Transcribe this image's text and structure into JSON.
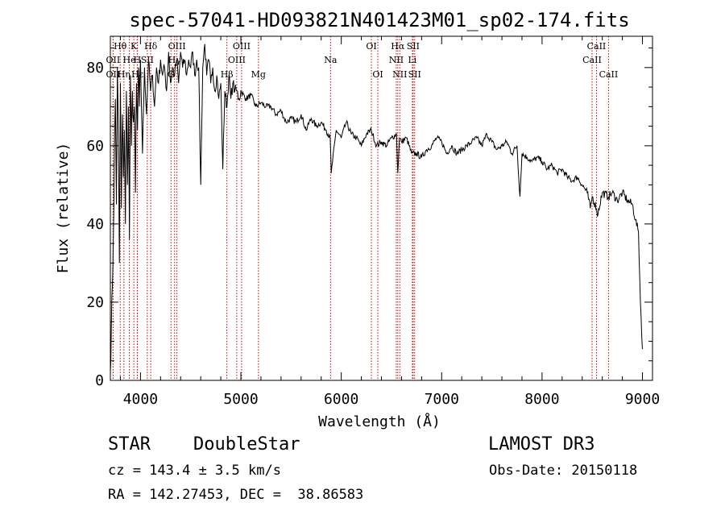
{
  "chart_data": {
    "type": "line",
    "title": "spec-57041-HD093821N401423M01_sp02-174.fits",
    "xlabel": "Wavelength (Å)",
    "ylabel": "Flux (relative)",
    "xlim": [
      3700,
      9100
    ],
    "ylim": [
      0,
      88
    ],
    "x_ticks": [
      4000,
      5000,
      6000,
      7000,
      8000,
      9000
    ],
    "x_tick_labels": [
      "4000",
      "5000",
      "6000",
      "7000",
      "8000",
      "9000"
    ],
    "y_ticks": [
      0,
      20,
      40,
      60,
      80
    ],
    "y_tick_labels": [
      "0",
      "20",
      "40",
      "60",
      "80"
    ],
    "grid": false,
    "series": [
      {
        "name": "flux",
        "color": "#000000",
        "x": [
          3700,
          3710,
          3720,
          3730,
          3740,
          3750,
          3760,
          3770,
          3780,
          3790,
          3800,
          3810,
          3820,
          3830,
          3840,
          3850,
          3860,
          3870,
          3880,
          3890,
          3900,
          3910,
          3920,
          3930,
          3940,
          3950,
          3960,
          3970,
          3980,
          3990,
          4000,
          4020,
          4040,
          4060,
          4080,
          4100,
          4120,
          4140,
          4160,
          4180,
          4200,
          4220,
          4240,
          4260,
          4280,
          4300,
          4320,
          4340,
          4360,
          4380,
          4400,
          4420,
          4440,
          4460,
          4480,
          4500,
          4520,
          4540,
          4560,
          4580,
          4600,
          4620,
          4640,
          4660,
          4680,
          4700,
          4720,
          4740,
          4760,
          4780,
          4800,
          4820,
          4840,
          4861,
          4880,
          4900,
          4920,
          4940,
          4960,
          4980,
          5000,
          5050,
          5100,
          5150,
          5200,
          5250,
          5300,
          5350,
          5400,
          5450,
          5500,
          5550,
          5600,
          5650,
          5700,
          5750,
          5800,
          5850,
          5890,
          5900,
          5950,
          6000,
          6050,
          6100,
          6150,
          6200,
          6250,
          6300,
          6350,
          6400,
          6450,
          6500,
          6550,
          6563,
          6580,
          6600,
          6650,
          6700,
          6750,
          6800,
          6850,
          6900,
          6950,
          7000,
          7050,
          7100,
          7150,
          7200,
          7250,
          7300,
          7350,
          7400,
          7450,
          7500,
          7550,
          7600,
          7650,
          7700,
          7750,
          7780,
          7800,
          7850,
          7900,
          7950,
          8000,
          8050,
          8100,
          8150,
          8200,
          8250,
          8300,
          8350,
          8400,
          8450,
          8480,
          8500,
          8542,
          8550,
          8600,
          8662,
          8700,
          8750,
          8800,
          8850,
          8900,
          8930,
          8960,
          8980,
          9000
        ],
        "values": [
          2,
          14,
          24,
          36,
          58,
          72,
          45,
          80,
          62,
          30,
          76,
          44,
          68,
          52,
          64,
          40,
          74,
          50,
          70,
          36,
          78,
          60,
          74,
          66,
          70,
          48,
          76,
          64,
          80,
          70,
          82,
          58,
          80,
          68,
          82,
          74,
          78,
          70,
          80,
          76,
          82,
          78,
          80,
          74,
          84,
          76,
          80,
          78,
          82,
          76,
          84,
          80,
          82,
          78,
          82,
          80,
          84,
          78,
          82,
          80,
          50,
          80,
          86,
          78,
          82,
          76,
          80,
          74,
          78,
          72,
          76,
          54,
          74,
          70,
          78,
          72,
          76,
          74,
          74,
          72,
          74,
          72,
          73,
          70,
          71,
          70,
          70,
          68,
          69,
          66,
          67,
          66,
          68,
          64,
          67,
          65,
          66,
          64,
          62,
          53,
          64,
          62,
          66,
          63,
          62,
          60,
          63,
          64,
          60,
          61,
          60,
          62,
          63,
          53,
          62,
          61,
          62,
          58,
          58,
          57,
          59,
          60,
          62,
          61,
          58,
          60,
          58,
          59,
          60,
          61,
          62,
          60,
          63,
          61,
          59,
          60,
          61,
          58,
          60,
          47,
          58,
          57,
          56,
          57,
          56,
          54,
          55,
          53,
          54,
          52,
          51,
          52,
          50,
          48,
          44,
          47,
          44,
          42,
          48,
          47,
          48,
          46,
          48,
          46,
          45,
          41,
          38,
          20,
          8
        ]
      }
    ],
    "line_markers": [
      {
        "label": "Hθ",
        "wavelength": 3798,
        "row": 1
      },
      {
        "label": "OII",
        "wavelength": 3727,
        "row": 2
      },
      {
        "label": "Hη",
        "wavelength": 3835,
        "row": 3
      },
      {
        "label": "OII",
        "wavelength": 3727,
        "row": 3
      },
      {
        "label": "He",
        "wavelength": 3889,
        "row": 2
      },
      {
        "label": "Hε",
        "wavelength": 3970,
        "row": 3
      },
      {
        "label": "K",
        "wavelength": 3934,
        "row": 1
      },
      {
        "label": "H",
        "wavelength": 3968,
        "row": 2
      },
      {
        "label": "SII",
        "wavelength": 4068,
        "row": 2
      },
      {
        "label": "Hδ",
        "wavelength": 4102,
        "row": 1
      },
      {
        "label": "OIII",
        "wavelength": 4363,
        "row": 1
      },
      {
        "label": "Hγ",
        "wavelength": 4340,
        "row": 2
      },
      {
        "label": "G",
        "wavelength": 4304,
        "row": 3
      },
      {
        "label": "Hβ",
        "wavelength": 4861,
        "row": 3
      },
      {
        "label": "OIII",
        "wavelength": 4959,
        "row": 2
      },
      {
        "label": "OIII",
        "wavelength": 5007,
        "row": 1
      },
      {
        "label": "Mg",
        "wavelength": 5175,
        "row": 3
      },
      {
        "label": "Na",
        "wavelength": 5893,
        "row": 2
      },
      {
        "label": "OI",
        "wavelength": 6300,
        "row": 1
      },
      {
        "label": "OI",
        "wavelength": 6364,
        "row": 3
      },
      {
        "label": "Hα",
        "wavelength": 6563,
        "row": 1
      },
      {
        "label": "NII",
        "wavelength": 6548,
        "row": 2
      },
      {
        "label": "NII",
        "wavelength": 6583,
        "row": 3
      },
      {
        "label": "SII",
        "wavelength": 6716,
        "row": 1
      },
      {
        "label": "Li",
        "wavelength": 6708,
        "row": 2
      },
      {
        "label": "SII",
        "wavelength": 6731,
        "row": 3
      },
      {
        "label": "CaII",
        "wavelength": 8542,
        "row": 1
      },
      {
        "label": "CaII",
        "wavelength": 8498,
        "row": 2
      },
      {
        "label": "CaII",
        "wavelength": 8662,
        "row": 3
      }
    ],
    "marker_color": "#cc0000"
  },
  "info": {
    "class": "STAR",
    "subclass": "DoubleStar",
    "survey": "LAMOST DR3",
    "cz": "cz = 143.4 ± 3.5 km/s",
    "obs_date": "Obs-Date: 20150118",
    "coords": "RA = 142.27453, DEC =  38.86583"
  }
}
